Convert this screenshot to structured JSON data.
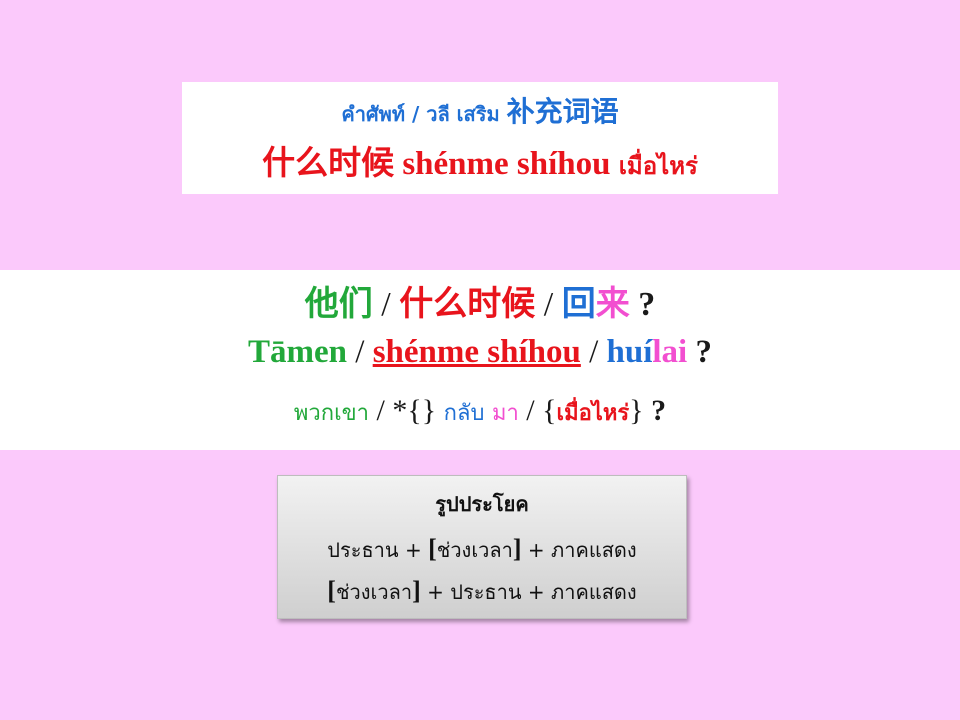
{
  "title": {
    "line1_thai": "คำศัพท์ / วลี เสริม",
    "line1_chinese": "补充词语",
    "line2_chinese": "什么时候",
    "line2_pinyin": "shénme shíhou",
    "line2_thai": "เมื่อไหร่"
  },
  "sentence": {
    "chinese": {
      "subject": "他们",
      "time": "什么时候",
      "verb1": "回",
      "verb2": "来",
      "sep": "/",
      "qmark": "?"
    },
    "pinyin": {
      "subject": "Tāmen",
      "time": "shénme shíhou",
      "verb1": "huí",
      "verb2": "lai",
      "sep": "/",
      "qmark": "?"
    },
    "thai": {
      "subject": "พวกเขา",
      "placeholder": "*{}",
      "verb1": "กลับ",
      "verb2": "มา",
      "time": "เมื่อไหร่",
      "open_brace": "{",
      "close_brace": "}",
      "sep": "/",
      "qmark": "?"
    }
  },
  "pattern": {
    "title": "รูปประโยค",
    "line1": {
      "subject": "ประธาน",
      "plus": "+",
      "time": "ช่วงเวลา",
      "predicate": "ภาคแสดง"
    },
    "line2": {
      "time": "ช่วงเวลา",
      "plus": "+",
      "subject": "ประธาน",
      "predicate": "ภาคแสดง"
    },
    "open_bracket": "[",
    "close_bracket": "]"
  },
  "colors": {
    "background": "#fbc9fb",
    "blue": "#1f6fd4",
    "red": "#e8141c",
    "green": "#22a83a",
    "pink": "#f24fd0"
  }
}
